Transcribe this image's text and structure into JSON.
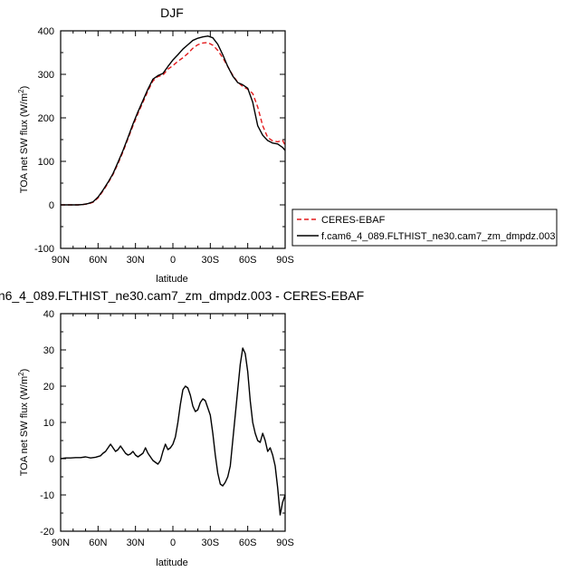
{
  "chart_data": [
    {
      "type": "line",
      "title": "DJF",
      "xlabel": "latitude",
      "ylabel": "TOA net SW flux (W/m",
      "ylabel_sup": "2",
      "ylabel_end": ")",
      "xlim": [
        90,
        -90
      ],
      "ylim": [
        -100,
        400
      ],
      "xticks": [
        90,
        60,
        30,
        0,
        -30,
        -60,
        -90
      ],
      "xtick_labels": [
        "90N",
        "60N",
        "30N",
        "0",
        "30S",
        "60S",
        "90S"
      ],
      "yticks": [
        -100,
        0,
        100,
        200,
        300,
        400
      ],
      "ytick_labels": [
        "-100",
        "0",
        "100",
        "200",
        "300",
        "400"
      ],
      "series": [
        {
          "name": "CERES-EBAF",
          "color": "#e41a1c",
          "dash": true,
          "x": [
            90,
            85,
            80,
            76,
            72,
            68,
            64,
            60,
            56,
            52,
            48,
            44,
            40,
            36,
            32,
            28,
            24,
            20,
            16,
            12,
            8,
            4,
            0,
            -4,
            -8,
            -12,
            -16,
            -20,
            -24,
            -28,
            -32,
            -36,
            -40,
            -44,
            -48,
            -52,
            -56,
            -60,
            -64,
            -68,
            -72,
            -76,
            -80,
            -84,
            -88,
            -90
          ],
          "y": [
            0,
            0,
            0,
            0,
            1,
            2,
            6,
            16,
            32,
            50,
            70,
            95,
            122,
            152,
            182,
            210,
            236,
            262,
            285,
            295,
            298,
            312,
            320,
            330,
            338,
            348,
            360,
            368,
            372,
            373,
            367,
            355,
            338,
            318,
            298,
            282,
            272,
            266,
            256,
            225,
            182,
            155,
            147,
            145,
            148,
            137
          ]
        },
        {
          "name": "f.cam6_4_089.FLTHIST_ne30.cam7_zm_dmpdz.003",
          "color": "#000000",
          "dash": false,
          "x": [
            90,
            85,
            80,
            76,
            72,
            68,
            64,
            60,
            56,
            52,
            48,
            44,
            40,
            36,
            32,
            28,
            24,
            20,
            16,
            12,
            8,
            4,
            0,
            -4,
            -8,
            -12,
            -16,
            -20,
            -24,
            -28,
            -32,
            -36,
            -40,
            -44,
            -48,
            -52,
            -56,
            -60,
            -64,
            -68,
            -72,
            -76,
            -80,
            -84,
            -88,
            -90
          ],
          "y": [
            0,
            0,
            0,
            0,
            1,
            3,
            7,
            18,
            34,
            52,
            72,
            98,
            125,
            155,
            186,
            214,
            240,
            266,
            289,
            297,
            302,
            318,
            333,
            345,
            358,
            368,
            378,
            383,
            386,
            388,
            384,
            369,
            345,
            318,
            296,
            281,
            276,
            268,
            236,
            182,
            160,
            148,
            142,
            140,
            132,
            125
          ]
        }
      ],
      "legend": "right"
    },
    {
      "type": "line",
      "title": "n6_4_089.FLTHIST_ne30.cam7_zm_dmpdz.003 - CERES-EBAF",
      "xlabel": "latitude",
      "ylabel": "TOA net SW flux (W/m",
      "ylabel_sup": "2",
      "ylabel_end": ")",
      "xlim": [
        90,
        -90
      ],
      "ylim": [
        -20,
        40
      ],
      "xticks": [
        90,
        60,
        30,
        0,
        -30,
        -60,
        -90
      ],
      "xtick_labels": [
        "90N",
        "60N",
        "30N",
        "0",
        "30S",
        "60S",
        "90S"
      ],
      "yticks": [
        -20,
        -10,
        0,
        10,
        20,
        30,
        40
      ],
      "ytick_labels": [
        "-20",
        "-10",
        "0",
        "10",
        "20",
        "30",
        "40"
      ],
      "series": [
        {
          "color": "#000000",
          "x": [
            90,
            86,
            82,
            78,
            74,
            70,
            66,
            62,
            58,
            56,
            54,
            52,
            50,
            48,
            46,
            44,
            42,
            40,
            38,
            36,
            34,
            32,
            30,
            28,
            26,
            24,
            22,
            20,
            18,
            16,
            14,
            12,
            10,
            8,
            6,
            4,
            2,
            0,
            -2,
            -4,
            -6,
            -8,
            -10,
            -12,
            -14,
            -16,
            -18,
            -20,
            -22,
            -24,
            -26,
            -28,
            -30,
            -32,
            -34,
            -36,
            -38,
            -40,
            -42,
            -44,
            -46,
            -48,
            -50,
            -52,
            -54,
            -56,
            -58,
            -60,
            -62,
            -64,
            -66,
            -68,
            -70,
            -72,
            -74,
            -76,
            -78,
            -80,
            -82,
            -84,
            -86,
            -88,
            -90
          ],
          "y": [
            0,
            0.2,
            0.2,
            0.3,
            0.3,
            0.5,
            0.2,
            0.4,
            0.8,
            1.5,
            2.0,
            3.0,
            4.0,
            3.0,
            2.0,
            2.5,
            3.5,
            2.5,
            1.5,
            1.0,
            1.3,
            2.0,
            1.0,
            0.5,
            1.0,
            1.5,
            3.0,
            1.5,
            0.5,
            -0.5,
            -1.0,
            -1.5,
            -0.5,
            2.0,
            4.0,
            2.5,
            3.0,
            4.0,
            6.0,
            10.0,
            15.0,
            19.0,
            20.0,
            19.5,
            17.5,
            14.5,
            13.0,
            13.5,
            15.5,
            16.5,
            16.0,
            14.0,
            12.0,
            7.0,
            1.0,
            -4.0,
            -7.0,
            -7.5,
            -6.5,
            -5.0,
            -2.0,
            5.0,
            12.0,
            19.0,
            26.0,
            30.5,
            29.0,
            24.0,
            16.0,
            10.0,
            7.0,
            5.0,
            4.5,
            7.0,
            5.0,
            2.0,
            3.0,
            1.0,
            -2.0,
            -8.0,
            -15.5,
            -12.0,
            -10.0
          ]
        }
      ]
    }
  ]
}
